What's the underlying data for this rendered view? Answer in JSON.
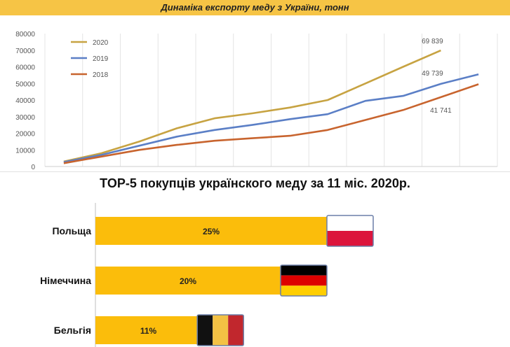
{
  "chart_data": [
    {
      "type": "line",
      "title": "Динаміка експорту меду з України, тонн",
      "x": [
        1,
        2,
        3,
        4,
        5,
        6,
        7,
        8,
        9,
        10,
        11,
        12
      ],
      "ylim": [
        0,
        80000
      ],
      "yticks": [
        0,
        10000,
        20000,
        30000,
        40000,
        50000,
        60000,
        70000,
        80000
      ],
      "ytick_labels": [
        "0",
        "10000",
        "20000",
        "30000",
        "40000",
        "50000",
        "60000",
        "70000",
        "80000"
      ],
      "grid": "vertical",
      "legend": "top-left",
      "series": [
        {
          "name": "2020",
          "color": "#c7a342",
          "values": [
            3000,
            8000,
            15000,
            23000,
            29000,
            32000,
            35500,
            40000,
            50000,
            60000,
            69839,
            null
          ]
        },
        {
          "name": "2019",
          "color": "#5b7fc6",
          "values": [
            2700,
            7000,
            12500,
            18000,
            22000,
            25000,
            28500,
            31500,
            39500,
            42500,
            49739,
            55500
          ]
        },
        {
          "name": "2018",
          "color": "#c8642e",
          "values": [
            2000,
            6000,
            10000,
            13000,
            15500,
            17000,
            18500,
            22000,
            28000,
            34000,
            41741,
            49500
          ]
        }
      ],
      "annotations": [
        {
          "text": "69 839",
          "series": 0,
          "index": 10
        },
        {
          "text": "49 739",
          "series": 1,
          "index": 10
        },
        {
          "text": "41 741",
          "series": 2,
          "index": 10
        }
      ]
    },
    {
      "type": "bar",
      "orientation": "horizontal",
      "title": "TOP-5 покупців українского меду за 11 міс. 2020р.",
      "categories": [
        "Польща",
        "Німеччина",
        "Бельгія"
      ],
      "values": [
        25,
        20,
        11
      ],
      "value_labels": [
        "25%",
        "20%",
        "11%"
      ],
      "flags": [
        "poland-flag",
        "germany-flag",
        "belgium-flag"
      ],
      "xlim": [
        0,
        25
      ],
      "bar_color": "#fbbd0b"
    }
  ]
}
